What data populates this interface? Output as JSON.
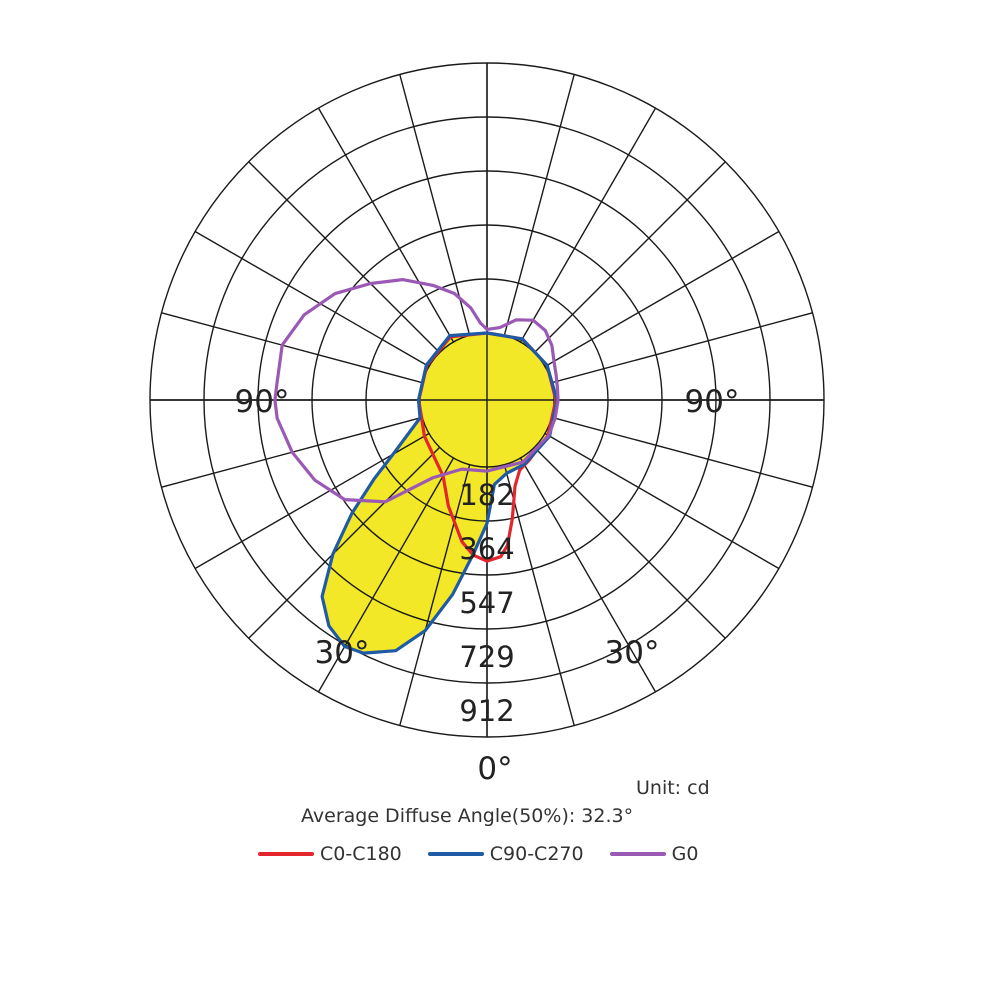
{
  "chart_data": {
    "type": "polar",
    "radial_ticks": [
      182,
      364,
      547,
      729,
      912
    ],
    "angle_labels": [
      {
        "text": "90°",
        "angle": -90
      },
      {
        "text": "90°",
        "angle": 90
      },
      {
        "text": "30°",
        "angle": -30
      },
      {
        "text": "30°",
        "angle": 30
      },
      {
        "text": "0°",
        "angle": 0
      }
    ],
    "max_value": 912,
    "angle_step_deg": 15,
    "series": [
      {
        "name": "C0-C180",
        "color": "#e3262d",
        "fill": "none",
        "points": [
          [
            -180,
            0
          ],
          [
            -150,
            20
          ],
          [
            -120,
            8
          ],
          [
            -90,
            4
          ],
          [
            -60,
            18
          ],
          [
            -30,
            70
          ],
          [
            -20,
            155
          ],
          [
            -10,
            260
          ],
          [
            -5,
            300
          ],
          [
            0,
            318
          ],
          [
            5,
            305
          ],
          [
            8,
            270
          ],
          [
            12,
            185
          ],
          [
            18,
            80
          ],
          [
            25,
            35
          ],
          [
            35,
            22
          ],
          [
            60,
            12
          ],
          [
            90,
            6
          ],
          [
            120,
            8
          ],
          [
            150,
            12
          ],
          [
            180,
            0
          ]
        ]
      },
      {
        "name": "C90-C270",
        "color": "#1f5aa6",
        "fill": "#f2e827",
        "points": [
          [
            -180,
            0
          ],
          [
            -150,
            25
          ],
          [
            -120,
            10
          ],
          [
            -90,
            5
          ],
          [
            -75,
            8
          ],
          [
            -60,
            140
          ],
          [
            -55,
            240
          ],
          [
            -50,
            370
          ],
          [
            -45,
            510
          ],
          [
            -40,
            640
          ],
          [
            -35,
            705
          ],
          [
            -30,
            735
          ],
          [
            -26,
            725
          ],
          [
            -20,
            675
          ],
          [
            -15,
            580
          ],
          [
            -10,
            440
          ],
          [
            -5,
            295
          ],
          [
            0,
            190
          ],
          [
            5,
            60
          ],
          [
            15,
            30
          ],
          [
            30,
            25
          ],
          [
            60,
            18
          ],
          [
            90,
            10
          ],
          [
            120,
            8
          ],
          [
            150,
            12
          ],
          [
            180,
            0
          ]
        ]
      },
      {
        "name": "G0",
        "color": "#9b59b6",
        "fill": "none",
        "points": [
          [
            0,
            14
          ],
          [
            -20,
            22
          ],
          [
            -35,
            95
          ],
          [
            -45,
            260
          ],
          [
            -55,
            360
          ],
          [
            -65,
            415
          ],
          [
            -75,
            455
          ],
          [
            -85,
            485
          ],
          [
            -90,
            490
          ],
          [
            -95,
            485
          ],
          [
            -105,
            490
          ],
          [
            -115,
            455
          ],
          [
            -125,
            400
          ],
          [
            -135,
            330
          ],
          [
            -145,
            270
          ],
          [
            -155,
            200
          ],
          [
            -163,
            150
          ],
          [
            -170,
            90
          ],
          [
            -175,
            35
          ],
          [
            -180,
            12
          ],
          [
            -190,
            22
          ],
          [
            -200,
            62
          ],
          [
            -210,
            85
          ],
          [
            -220,
            80
          ],
          [
            -230,
            60
          ],
          [
            -240,
            35
          ],
          [
            -250,
            22
          ],
          [
            -260,
            15
          ],
          [
            -270,
            14
          ],
          [
            -285,
            12
          ],
          [
            -300,
            14
          ],
          [
            -330,
            16
          ],
          [
            -360,
            14
          ]
        ]
      }
    ]
  },
  "info": {
    "unit": "Unit: cd",
    "diffuse_angle": "Average Diffuse Angle(50%): 32.3°"
  },
  "legend": [
    {
      "label": "C0-C180",
      "color": "#e3262d"
    },
    {
      "label": "C90-C270",
      "color": "#1f5aa6"
    },
    {
      "label": "G0",
      "color": "#9b59b6"
    }
  ]
}
